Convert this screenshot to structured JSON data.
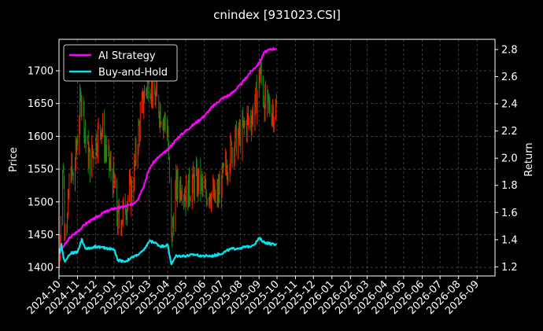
{
  "chart_data": {
    "type": "line",
    "title": "cnindex [931023.CSI]",
    "ylabel_left": "Price",
    "ylabel_right": "Return",
    "ylim_left": [
      1387,
      1748
    ],
    "ylim_right": [
      1.133,
      2.875
    ],
    "yticks_left": [
      1400,
      1450,
      1500,
      1550,
      1600,
      1650,
      1700
    ],
    "yticks_right": [
      1.2,
      1.4,
      1.6,
      1.8,
      2.0,
      2.2,
      2.4,
      2.6,
      2.8
    ],
    "x_tick_labels": [
      "2024-10",
      "2024-11",
      "2024-12",
      "2025-01",
      "2025-02",
      "2025-03",
      "2025-04",
      "2025-05",
      "2025-06",
      "2025-07",
      "2025-08",
      "2025-09",
      "2025-10",
      "2025-11",
      "2025-12",
      "2026-01",
      "2026-02",
      "2026-03",
      "2026-04",
      "2026-05",
      "2026-06",
      "2026-07",
      "2026-08",
      "2026-09"
    ],
    "grid": true,
    "legend_position": "top-left",
    "colors": {
      "background": "#000000",
      "ai_strategy": "#ff00ff",
      "buy_and_hold": "#00e5ee",
      "candle_up": "#ff2200",
      "candle_down": "#118811",
      "grid": "#555555"
    },
    "series": [
      {
        "name": "AI Strategy",
        "axis": "right",
        "points": [
          [
            "2024-10-01",
            1.3
          ],
          [
            "2024-10-10",
            1.36
          ],
          [
            "2024-10-20",
            1.42
          ],
          [
            "2024-11-01",
            1.46
          ],
          [
            "2024-11-15",
            1.52
          ],
          [
            "2024-12-01",
            1.56
          ],
          [
            "2024-12-15",
            1.6
          ],
          [
            "2025-01-01",
            1.63
          ],
          [
            "2025-01-15",
            1.64
          ],
          [
            "2025-02-01",
            1.66
          ],
          [
            "2025-02-10",
            1.7
          ],
          [
            "2025-02-20",
            1.8
          ],
          [
            "2025-03-01",
            1.92
          ],
          [
            "2025-03-10",
            1.98
          ],
          [
            "2025-03-20",
            2.02
          ],
          [
            "2025-04-01",
            2.06
          ],
          [
            "2025-04-08",
            2.1
          ],
          [
            "2025-04-20",
            2.16
          ],
          [
            "2025-05-01",
            2.2
          ],
          [
            "2025-05-15",
            2.25
          ],
          [
            "2025-06-01",
            2.31
          ],
          [
            "2025-06-15",
            2.38
          ],
          [
            "2025-07-01",
            2.44
          ],
          [
            "2025-07-15",
            2.47
          ],
          [
            "2025-08-01",
            2.54
          ],
          [
            "2025-08-15",
            2.62
          ],
          [
            "2025-09-01",
            2.7
          ],
          [
            "2025-09-10",
            2.78
          ],
          [
            "2025-09-20",
            2.8
          ],
          [
            "2025-09-30",
            2.81
          ]
        ]
      },
      {
        "name": "Buy-and-Hold",
        "axis": "right",
        "points": [
          [
            "2024-10-01",
            1.3
          ],
          [
            "2024-10-05",
            1.36
          ],
          [
            "2024-10-10",
            1.24
          ],
          [
            "2024-10-20",
            1.3
          ],
          [
            "2024-11-01",
            1.31
          ],
          [
            "2024-11-08",
            1.4
          ],
          [
            "2024-11-15",
            1.33
          ],
          [
            "2024-12-01",
            1.35
          ],
          [
            "2024-12-15",
            1.34
          ],
          [
            "2025-01-01",
            1.33
          ],
          [
            "2025-01-07",
            1.25
          ],
          [
            "2025-01-20",
            1.24
          ],
          [
            "2025-02-01",
            1.27
          ],
          [
            "2025-02-10",
            1.29
          ],
          [
            "2025-02-20",
            1.32
          ],
          [
            "2025-03-01",
            1.39
          ],
          [
            "2025-03-10",
            1.38
          ],
          [
            "2025-03-20",
            1.35
          ],
          [
            "2025-04-01",
            1.36
          ],
          [
            "2025-04-07",
            1.22
          ],
          [
            "2025-04-15",
            1.28
          ],
          [
            "2025-05-01",
            1.28
          ],
          [
            "2025-05-15",
            1.29
          ],
          [
            "2025-06-01",
            1.28
          ],
          [
            "2025-06-15",
            1.28
          ],
          [
            "2025-07-01",
            1.3
          ],
          [
            "2025-07-15",
            1.33
          ],
          [
            "2025-08-01",
            1.34
          ],
          [
            "2025-08-15",
            1.35
          ],
          [
            "2025-08-25",
            1.37
          ],
          [
            "2025-09-01",
            1.41
          ],
          [
            "2025-09-10",
            1.38
          ],
          [
            "2025-09-20",
            1.37
          ],
          [
            "2025-09-30",
            1.36
          ]
        ]
      },
      {
        "name": "price",
        "axis": "left",
        "type": "candlestick",
        "points": [
          [
            "2024-10-01",
            1410
          ],
          [
            "2024-10-05",
            1500
          ],
          [
            "2024-10-08",
            1560
          ],
          [
            "2024-10-10",
            1480
          ],
          [
            "2024-10-15",
            1470
          ],
          [
            "2024-10-20",
            1560
          ],
          [
            "2024-10-25",
            1530
          ],
          [
            "2024-11-01",
            1600
          ],
          [
            "2024-11-08",
            1670
          ],
          [
            "2024-11-15",
            1590
          ],
          [
            "2024-11-22",
            1560
          ],
          [
            "2024-12-01",
            1590
          ],
          [
            "2024-12-10",
            1620
          ],
          [
            "2024-12-20",
            1570
          ],
          [
            "2025-01-01",
            1530
          ],
          [
            "2025-01-07",
            1470
          ],
          [
            "2025-01-15",
            1480
          ],
          [
            "2025-01-25",
            1510
          ],
          [
            "2025-02-01",
            1520
          ],
          [
            "2025-02-10",
            1600
          ],
          [
            "2025-02-20",
            1660
          ],
          [
            "2025-03-01",
            1690
          ],
          [
            "2025-03-10",
            1660
          ],
          [
            "2025-03-20",
            1640
          ],
          [
            "2025-04-01",
            1610
          ],
          [
            "2025-04-07",
            1440
          ],
          [
            "2025-04-15",
            1520
          ],
          [
            "2025-04-25",
            1530
          ],
          [
            "2025-05-01",
            1510
          ],
          [
            "2025-05-15",
            1530
          ],
          [
            "2025-05-25",
            1530
          ],
          [
            "2025-06-01",
            1510
          ],
          [
            "2025-06-10",
            1520
          ],
          [
            "2025-06-20",
            1500
          ],
          [
            "2025-07-01",
            1530
          ],
          [
            "2025-07-10",
            1560
          ],
          [
            "2025-07-20",
            1590
          ],
          [
            "2025-08-01",
            1600
          ],
          [
            "2025-08-10",
            1620
          ],
          [
            "2025-08-20",
            1630
          ],
          [
            "2025-08-28",
            1660
          ],
          [
            "2025-09-03",
            1700
          ],
          [
            "2025-09-10",
            1650
          ],
          [
            "2025-09-20",
            1640
          ],
          [
            "2025-09-30",
            1640
          ]
        ]
      }
    ]
  }
}
